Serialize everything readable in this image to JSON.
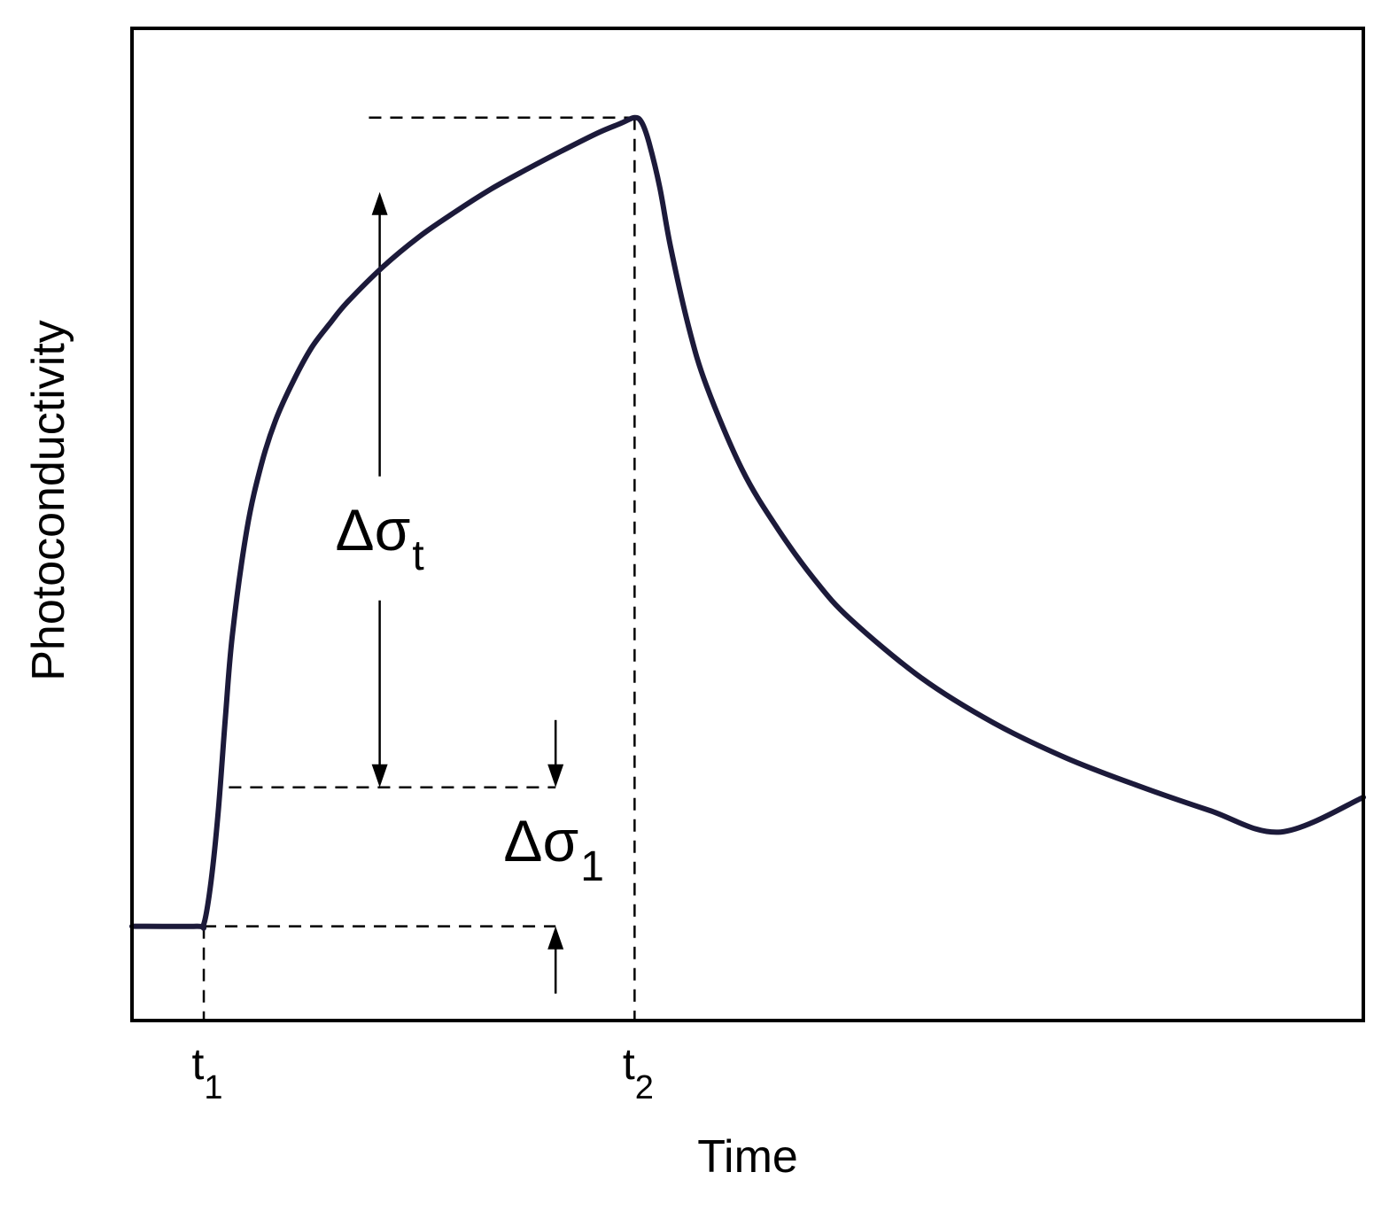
{
  "chart_data": {
    "type": "line",
    "title": "",
    "xlabel": "Time",
    "ylabel": "Photoconductivity",
    "x_ticks": [
      {
        "base": "t",
        "sub": "1",
        "value": 1.0
      },
      {
        "base": "t",
        "sub": "2",
        "value": 7.0
      }
    ],
    "xlim": [
      0,
      17.15
    ],
    "ylim": [
      0,
      10
    ],
    "grid": false,
    "line_color": "#1c1a3a",
    "annotations": [
      {
        "base": "Δσ",
        "sub": "t",
        "kind": "span",
        "x": 3.45,
        "from": 0.95,
        "to": 8.35
      },
      {
        "base": "Δσ",
        "sub": "1",
        "kind": "span",
        "x": 5.9,
        "from": 0.95,
        "to": 2.35
      }
    ],
    "reference_levels": [
      {
        "y": 0.95,
        "x_from": 1.0,
        "x_to": 5.9
      },
      {
        "y": 2.35,
        "x_from": 1.35,
        "x_to": 5.9
      },
      {
        "y": 9.1,
        "x_from": 3.3,
        "x_to": 7.0
      }
    ],
    "reference_times": [
      1.0,
      7.0
    ],
    "series": [
      {
        "x": [
          0,
          0.9,
          1.0,
          1.1,
          1.2,
          1.3,
          1.4,
          1.6,
          1.8,
          2.0,
          2.25,
          2.5,
          2.75,
          3.0,
          3.5,
          4.0,
          4.5,
          5.0,
          5.5,
          6.0,
          6.5,
          6.8,
          7.0,
          7.1,
          7.2,
          7.35,
          7.5,
          7.75,
          8.0,
          8.5,
          9.0,
          9.5,
          10.0,
          11.0,
          12.0,
          13.0,
          14.0,
          15.0,
          16.0,
          17.15
        ],
        "y": [
          0.95,
          0.95,
          0.97,
          1.4,
          2.1,
          3.05,
          3.9,
          4.95,
          5.6,
          6.05,
          6.45,
          6.78,
          7.02,
          7.24,
          7.6,
          7.9,
          8.15,
          8.38,
          8.58,
          8.77,
          8.95,
          9.04,
          9.1,
          9.05,
          8.85,
          8.4,
          7.8,
          7.0,
          6.4,
          5.55,
          4.95,
          4.45,
          4.05,
          3.45,
          3.0,
          2.65,
          2.37,
          2.12,
          1.9,
          2.25
        ]
      }
    ]
  }
}
